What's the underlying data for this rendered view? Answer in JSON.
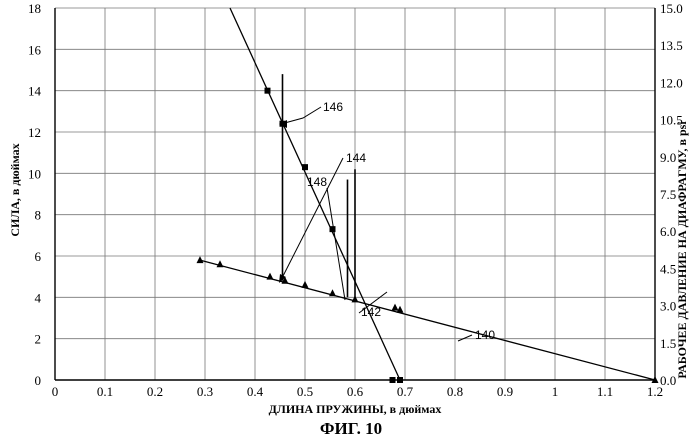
{
  "chart_data": {
    "type": "line",
    "caption": "ФИГ. 10",
    "xlabel": "ДЛИНА ПРУЖИНЫ, в дюймах",
    "ylabel_left": "СИЛА, в дюймах",
    "ylabel_right": "РАБОЧЕЕ ДАВЛЕНИЕ НА ДИАФРАГМУ, в psi",
    "xlim": [
      0,
      1.2
    ],
    "ylim_left": [
      0,
      18
    ],
    "ylim_right": [
      0,
      15.0
    ],
    "x_ticks": [
      "0",
      "0.1",
      "0.2",
      "0.3",
      "0.4",
      "0.5",
      "0.6",
      "0.7",
      "0.8",
      "0.9",
      "1",
      "1.1",
      "1.2"
    ],
    "y_ticks_left": [
      "0",
      "2",
      "4",
      "6",
      "8",
      "10",
      "12",
      "14",
      "16",
      "18"
    ],
    "y_ticks_right": [
      "0.0",
      "1.5",
      "3.0",
      "4.5",
      "6.0",
      "7.5",
      "9.0",
      "10.5",
      "12.0",
      "13.5",
      "15.0"
    ],
    "grid": true,
    "series": [
      {
        "ref": "140",
        "marker": "triangle",
        "line": [
          [
            0.29,
            5.8
          ],
          [
            1.2,
            0.0
          ]
        ],
        "points": [
          [
            0.29,
            5.8
          ],
          [
            0.33,
            5.6
          ],
          [
            0.43,
            5.0
          ],
          [
            0.46,
            4.8
          ],
          [
            0.5,
            4.6
          ],
          [
            0.555,
            4.2
          ],
          [
            0.6,
            3.9
          ],
          [
            0.68,
            3.5
          ],
          [
            0.69,
            3.4
          ],
          [
            1.2,
            0.0
          ]
        ]
      },
      {
        "ref": "146",
        "marker": "square",
        "line": [
          [
            0.35,
            18.0
          ],
          [
            0.69,
            0.0
          ]
        ],
        "points": [
          [
            0.425,
            14.0
          ],
          [
            0.455,
            12.4
          ],
          [
            0.5,
            10.3
          ],
          [
            0.555,
            7.3
          ],
          [
            0.675,
            0.0
          ],
          [
            0.69,
            0.0
          ]
        ]
      }
    ],
    "vertical_lines": [
      {
        "x": 0.455,
        "y_range": [
          4.8,
          14.8
        ]
      },
      {
        "x": 0.585,
        "y_range": [
          4.0,
          9.7
        ]
      },
      {
        "x": 0.6,
        "y_range": [
          3.9,
          10.2
        ]
      }
    ],
    "annotations": [
      "146",
      "144",
      "148",
      "142",
      "140"
    ]
  }
}
